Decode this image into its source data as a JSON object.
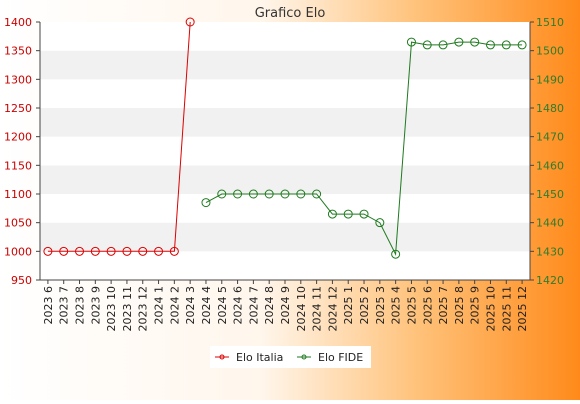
{
  "chart_data": {
    "type": "line",
    "title": "Grafico Elo",
    "categories": [
      "2023 6",
      "2023 7",
      "2023 8",
      "2023 9",
      "2023 10",
      "2023 11",
      "2023 12",
      "2024 1",
      "2024 2",
      "2024 3",
      "2024 4",
      "2024 5",
      "2024 6",
      "2024 7",
      "2024 8",
      "2024 9",
      "2024 10",
      "2024 11",
      "2024 12",
      "2025 1",
      "2025 2",
      "2025 3",
      "2025 4",
      "2025 5",
      "2025 6",
      "2025 7",
      "2025 8",
      "2025 9",
      "2025 10",
      "2025 11",
      "2025 12"
    ],
    "y_left": {
      "min": 950,
      "max": 1400,
      "ticks": [
        950,
        1000,
        1050,
        1100,
        1150,
        1200,
        1250,
        1300,
        1350,
        1400
      ],
      "color": "#cc0000"
    },
    "y_right": {
      "min": 1420,
      "max": 1510,
      "ticks": [
        1420,
        1430,
        1440,
        1450,
        1460,
        1470,
        1480,
        1490,
        1500,
        1510
      ],
      "color": "#2e7d2e"
    },
    "series": [
      {
        "name": "Elo Italia",
        "axis": "left",
        "color": "#dd0000",
        "values": [
          1000,
          1000,
          1000,
          1000,
          1000,
          1000,
          1000,
          1000,
          1000,
          1400,
          null,
          null,
          null,
          null,
          null,
          null,
          null,
          null,
          null,
          null,
          null,
          null,
          null,
          null,
          null,
          null,
          null,
          null,
          null,
          null,
          null
        ]
      },
      {
        "name": "Elo FIDE",
        "axis": "right",
        "color": "#1f7a1f",
        "values": [
          null,
          null,
          null,
          null,
          null,
          null,
          null,
          null,
          null,
          null,
          1447,
          1450,
          1450,
          1450,
          1450,
          1450,
          1450,
          1450,
          1443,
          1443,
          1443,
          1440,
          1429,
          1503,
          1502,
          1502,
          1503,
          1503,
          1502,
          1502,
          1502
        ]
      }
    ],
    "grid": "horizontal bands",
    "legend_position": "bottom-center"
  }
}
